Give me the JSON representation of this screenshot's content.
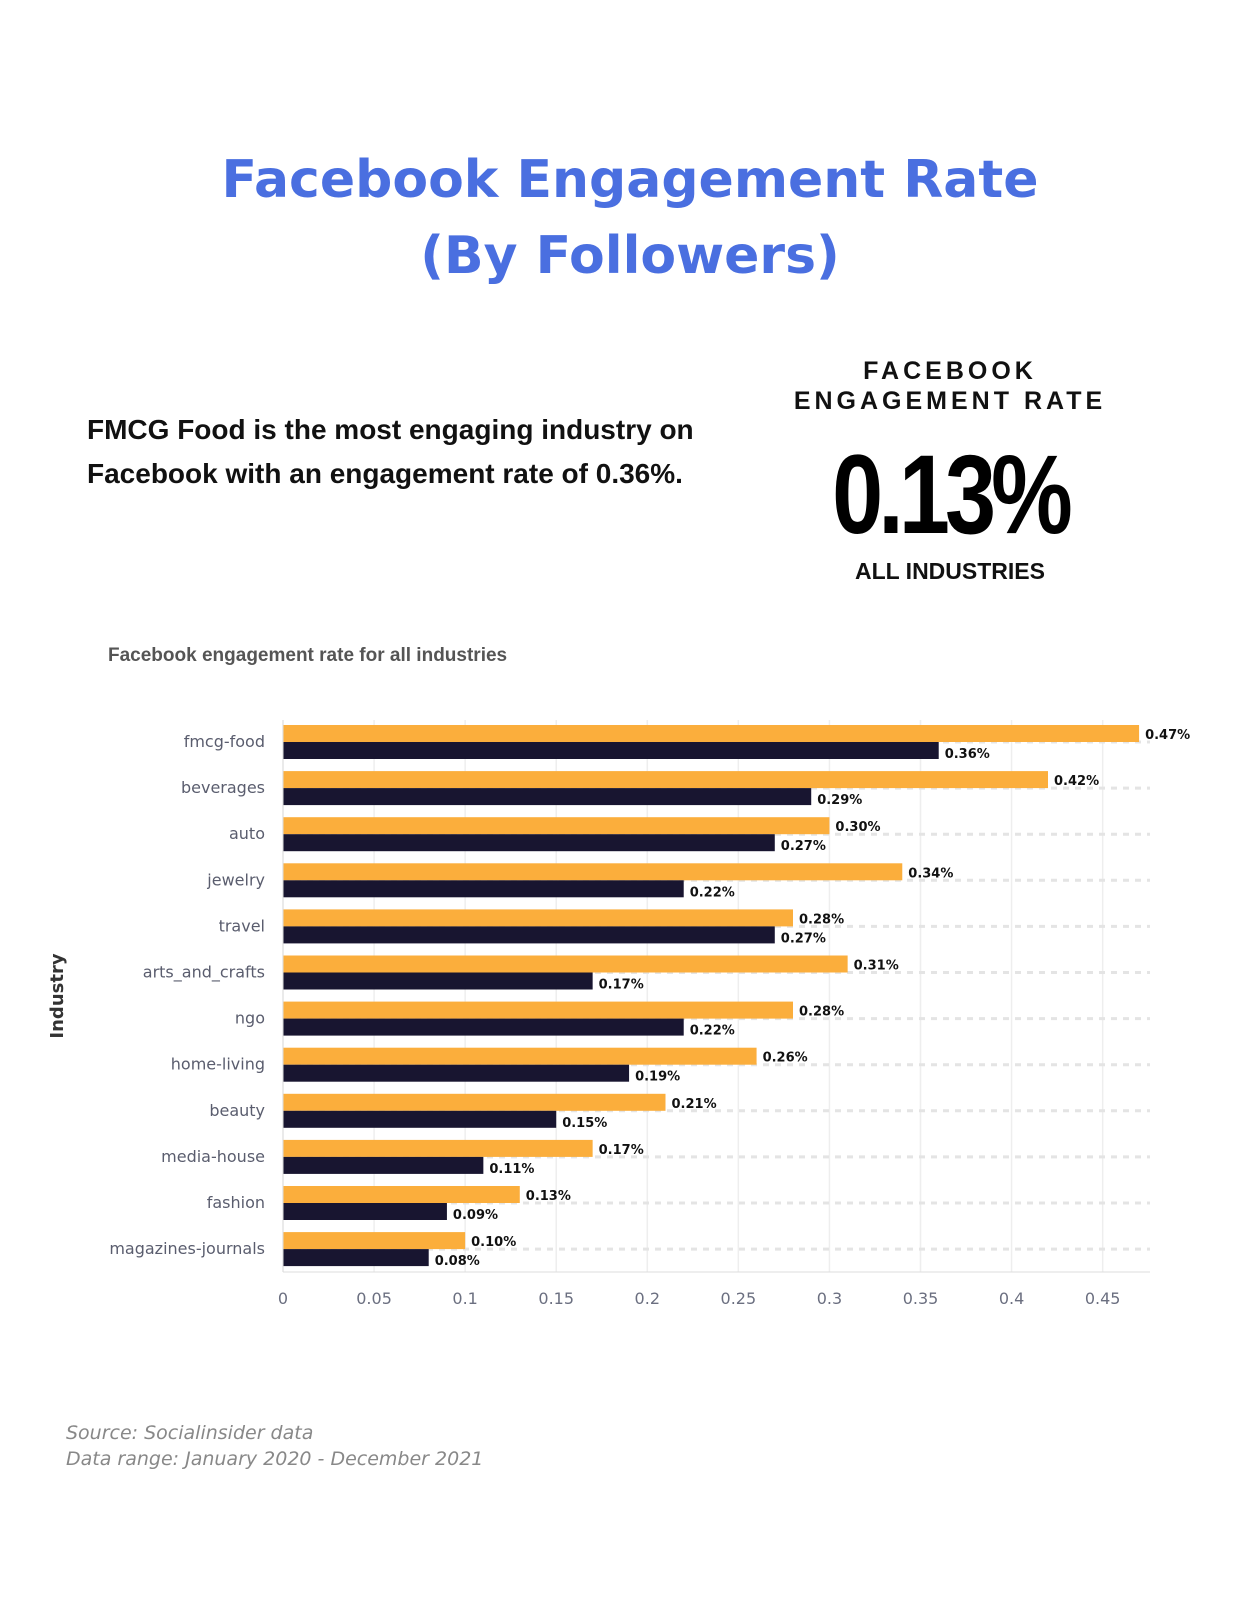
{
  "header": {
    "title_line1": "Facebook Engagement Rate",
    "title_line2": "(By Followers)"
  },
  "summary": "FMCG Food is the most engaging industry on Facebook with an engagement rate of 0.36%.",
  "kpi": {
    "label_line1": "FACEBOOK",
    "label_line2": "ENGAGEMENT RATE",
    "value": "0.13%",
    "sublabel": "ALL INDUSTRIES"
  },
  "chart_data": {
    "type": "bar",
    "orientation": "horizontal",
    "title": "Facebook engagement rate for all industries",
    "ylabel": "Industry",
    "xlabel": "",
    "xlim": [
      0,
      0.476
    ],
    "xticks": [
      "0",
      "0.05",
      "0.1",
      "0.15",
      "0.2",
      "0.25",
      "0.3",
      "0.35",
      "0.4",
      "0.45"
    ],
    "grid": true,
    "categories": [
      "fmcg-food",
      "beverages",
      "auto",
      "jewelry",
      "travel",
      "arts_and_crafts",
      "ngo",
      "home-living",
      "beauty",
      "media-house",
      "fashion",
      "magazines-journals"
    ],
    "series": [
      {
        "color": "#fbae3c",
        "values": [
          0.47,
          0.42,
          0.3,
          0.34,
          0.28,
          0.31,
          0.28,
          0.26,
          0.21,
          0.17,
          0.13,
          0.1
        ],
        "labels": [
          "0.47%",
          "0.42%",
          "0.30%",
          "0.34%",
          "0.28%",
          "0.31%",
          "0.28%",
          "0.26%",
          "0.21%",
          "0.17%",
          "0.13%",
          "0.10%"
        ]
      },
      {
        "color": "#181530",
        "values": [
          0.36,
          0.29,
          0.27,
          0.22,
          0.27,
          0.17,
          0.22,
          0.19,
          0.15,
          0.11,
          0.09,
          0.08
        ],
        "labels": [
          "0.36%",
          "0.29%",
          "0.27%",
          "0.22%",
          "0.27%",
          "0.17%",
          "0.22%",
          "0.19%",
          "0.15%",
          "0.11%",
          "0.09%",
          "0.08%"
        ]
      }
    ]
  },
  "source": {
    "line1": "Source: Socialinsider data",
    "line2": "Data range: January 2020 - December 2021"
  }
}
